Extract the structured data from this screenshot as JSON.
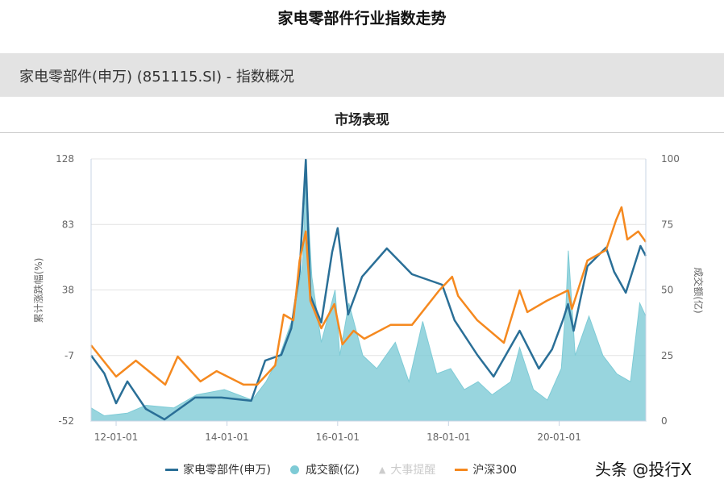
{
  "page_title": "家电零部件行业指数走势",
  "header": {
    "label": "家电零部件(申万) (851115.SI) - 指数概况"
  },
  "section_title": "市场表现",
  "watermark": "头条 @投行X",
  "chart_data": {
    "type": "line",
    "left_axis": {
      "label": "累计涨跌幅(%)",
      "ticks": [
        128,
        83,
        38,
        -7,
        -52
      ],
      "range": [
        -52,
        128
      ]
    },
    "right_axis": {
      "label": "成交额(亿)",
      "ticks": [
        100,
        75,
        50,
        25,
        0
      ],
      "range": [
        0,
        100
      ]
    },
    "x_ticks": [
      "12-01-01",
      "14-01-01",
      "16-01-01",
      "18-01-01",
      "20-01-01"
    ],
    "x_range": [
      "2011-07-20",
      "2021-07-25"
    ],
    "grid": true,
    "legend_position": "bottom",
    "legend": [
      {
        "name": "家电零部件(申万)",
        "marker": "line"
      },
      {
        "name": "成交额(亿)",
        "marker": "dot"
      },
      {
        "name": "大事提醒",
        "marker": "triangle",
        "disabled": true
      },
      {
        "name": "沪深300",
        "marker": "line"
      }
    ],
    "colors": {
      "index": "#2a6f97",
      "volume": "#7ecbd6",
      "hs300": "#f5891f",
      "event": "#cccccc"
    },
    "series": [
      {
        "name": "家电零部件(申万)",
        "axis": "left",
        "points": [
          [
            "2011-07-20",
            -7
          ],
          [
            "2011-10-15",
            -19.3
          ],
          [
            "2012-01-01",
            -39.8
          ],
          [
            "2012-03-15",
            -24.8
          ],
          [
            "2012-07-15",
            -43.7
          ],
          [
            "2012-11-15",
            -50.9
          ],
          [
            "2013-06-05",
            -35.9
          ],
          [
            "2013-11-25",
            -35.9
          ],
          [
            "2014-06-10",
            -38.1
          ],
          [
            "2014-09-10",
            -10.5
          ],
          [
            "2014-12-25",
            -6.6
          ],
          [
            "2015-03-01",
            11.7
          ],
          [
            "2015-04-25",
            50.5
          ],
          [
            "2015-06-05",
            127.4
          ],
          [
            "2015-07-05",
            33.9
          ],
          [
            "2015-09-15",
            15.6
          ],
          [
            "2015-11-25",
            63.8
          ],
          [
            "2016-01-01",
            80.4
          ],
          [
            "2016-03-10",
            21.1
          ],
          [
            "2016-06-10",
            47.1
          ],
          [
            "2016-11-20",
            66.5
          ],
          [
            "2017-05-05",
            48.8
          ],
          [
            "2017-11-20",
            41.6
          ],
          [
            "2018-02-10",
            17.2
          ],
          [
            "2018-07-10",
            -6.6
          ],
          [
            "2018-10-25",
            -21.5
          ],
          [
            "2019-04-15",
            10
          ],
          [
            "2019-08-20",
            -16
          ],
          [
            "2019-11-15",
            -2.7
          ],
          [
            "2020-01-25",
            17.2
          ],
          [
            "2020-02-28",
            28.3
          ],
          [
            "2020-04-05",
            10
          ],
          [
            "2020-07-05",
            54.3
          ],
          [
            "2020-11-05",
            67.1
          ],
          [
            "2020-12-28",
            50.5
          ],
          [
            "2021-03-15",
            36.1
          ],
          [
            "2021-06-20",
            68.2
          ],
          [
            "2021-07-25",
            61.5
          ]
        ]
      },
      {
        "name": "成交额(亿)",
        "axis": "right",
        "type": "area",
        "points": [
          [
            "2011-07-20",
            5
          ],
          [
            "2011-10-15",
            2
          ],
          [
            "2012-03-15",
            3
          ],
          [
            "2012-07-15",
            6
          ],
          [
            "2013-01-15",
            5
          ],
          [
            "2013-06-15",
            10
          ],
          [
            "2013-12-15",
            12
          ],
          [
            "2014-06-15",
            8
          ],
          [
            "2014-09-15",
            15
          ],
          [
            "2014-12-15",
            25
          ],
          [
            "2015-03-15",
            40
          ],
          [
            "2015-05-15",
            60
          ],
          [
            "2015-06-05",
            95
          ],
          [
            "2015-07-15",
            55
          ],
          [
            "2015-09-15",
            30
          ],
          [
            "2015-12-15",
            50
          ],
          [
            "2016-01-15",
            25
          ],
          [
            "2016-03-15",
            45
          ],
          [
            "2016-06-15",
            25
          ],
          [
            "2016-09-15",
            20
          ],
          [
            "2017-01-15",
            30
          ],
          [
            "2017-04-15",
            15
          ],
          [
            "2017-07-15",
            38
          ],
          [
            "2017-10-15",
            18
          ],
          [
            "2018-01-15",
            20
          ],
          [
            "2018-04-15",
            12
          ],
          [
            "2018-07-15",
            15
          ],
          [
            "2018-10-15",
            10
          ],
          [
            "2019-02-15",
            15
          ],
          [
            "2019-04-15",
            28
          ],
          [
            "2019-07-15",
            12
          ],
          [
            "2019-10-15",
            8
          ],
          [
            "2020-01-15",
            20
          ],
          [
            "2020-02-15",
            45
          ],
          [
            "2020-03-01",
            65
          ],
          [
            "2020-04-15",
            25
          ],
          [
            "2020-07-15",
            40
          ],
          [
            "2020-10-15",
            25
          ],
          [
            "2021-01-15",
            18
          ],
          [
            "2021-04-15",
            15
          ],
          [
            "2021-06-15",
            45
          ],
          [
            "2021-07-25",
            40
          ]
        ]
      },
      {
        "name": "沪深300",
        "axis": "left",
        "points": [
          [
            "2011-07-20",
            0
          ],
          [
            "2012-01-01",
            -21.5
          ],
          [
            "2012-05-10",
            -10.5
          ],
          [
            "2012-11-20",
            -27
          ],
          [
            "2013-02-10",
            -7.7
          ],
          [
            "2013-07-10",
            -24.8
          ],
          [
            "2013-10-25",
            -17.7
          ],
          [
            "2014-04-20",
            -27
          ],
          [
            "2014-07-20",
            -27
          ],
          [
            "2014-11-15",
            -13.8
          ],
          [
            "2015-01-10",
            21.1
          ],
          [
            "2015-03-15",
            17.2
          ],
          [
            "2015-04-25",
            58.2
          ],
          [
            "2015-06-05",
            78.2
          ],
          [
            "2015-07-05",
            30.5
          ],
          [
            "2015-09-15",
            11.7
          ],
          [
            "2015-12-10",
            28.3
          ],
          [
            "2016-02-01",
            0.6
          ],
          [
            "2016-04-15",
            10
          ],
          [
            "2016-06-25",
            4.5
          ],
          [
            "2016-12-15",
            14
          ],
          [
            "2017-05-05",
            14
          ],
          [
            "2017-11-01",
            37.7
          ],
          [
            "2018-01-25",
            47.1
          ],
          [
            "2018-03-05",
            33.9
          ],
          [
            "2018-07-10",
            17.2
          ],
          [
            "2019-01-01",
            1.7
          ],
          [
            "2019-04-15",
            37.7
          ],
          [
            "2019-06-05",
            22.8
          ],
          [
            "2019-10-10",
            30.5
          ],
          [
            "2020-02-28",
            37.7
          ],
          [
            "2020-03-25",
            25
          ],
          [
            "2020-07-05",
            58.2
          ],
          [
            "2020-11-05",
            65.4
          ],
          [
            "2021-01-10",
            85.9
          ],
          [
            "2021-02-15",
            94.8
          ],
          [
            "2021-03-25",
            72.6
          ],
          [
            "2021-06-05",
            78.2
          ],
          [
            "2021-07-25",
            71
          ]
        ]
      }
    ]
  }
}
